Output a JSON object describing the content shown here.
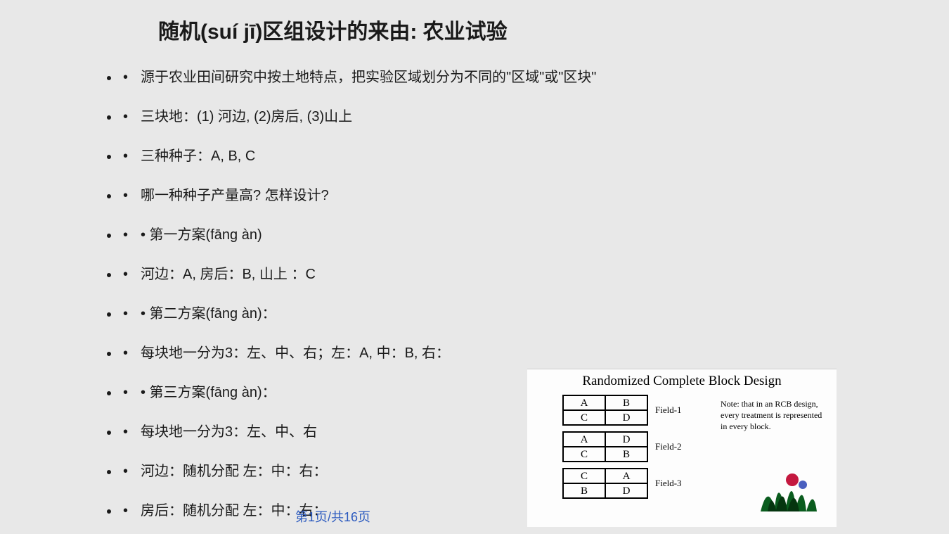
{
  "title": "随机(suí jī)区组设计的来由: 农业试验",
  "bullets": [
    "源于农业田间研究中按土地特点，把实验区域划分为不同的\"区域\"或\"区块\"",
    "三块地：(1) 河边, (2)房后, (3)山上",
    "三种种子：A, B, C",
    "哪一种种子产量高? 怎样设计?",
    "• 第一方案(fāng àn)",
    "河边：A, 房后：B, 山上 ：C",
    "• 第二方案(fāng àn)：",
    "每块地一分为3：左、中、右；左：A, 中：B, 右：",
    "• 第三方案(fāng àn)：",
    "每块地一分为3：左、中、右",
    "河边：随机分配 左：中：右：",
    "房后：随机分配 左：中：右："
  ],
  "pager": "第1页/共16页",
  "figure": {
    "title": "Randomized Complete Block Design",
    "fields": [
      {
        "cells": [
          "A",
          "B",
          "C",
          "D"
        ],
        "label": "Field-1"
      },
      {
        "cells": [
          "A",
          "D",
          "C",
          "B"
        ],
        "label": "Field-2"
      },
      {
        "cells": [
          "C",
          "A",
          "B",
          "D"
        ],
        "label": "Field-3"
      }
    ],
    "note": "Note: that in an RCB design, every treatment is represented in every block.",
    "plant_colors": {
      "leaves": "#0a5c1e",
      "flower": "#c4183f",
      "dark": "#05350f"
    }
  },
  "colors": {
    "page_bg": "#e8e8e8",
    "text": "#1a1a1a",
    "link": "#2b5abf"
  }
}
